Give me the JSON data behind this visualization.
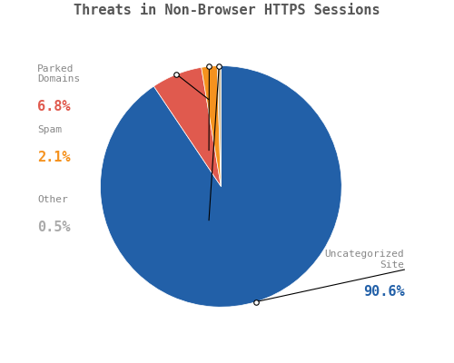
{
  "title": "Threats in Non-Browser HTTPS Sessions",
  "slices": [
    {
      "label": "Uncategorized\nSite",
      "value": 90.6,
      "color": "#2260a8",
      "pct_text": "90.6%",
      "pct_color": "#2260a8"
    },
    {
      "label": "Parked\nDomains",
      "value": 6.8,
      "color": "#e05a4e",
      "pct_text": "6.8%",
      "pct_color": "#e05a4e"
    },
    {
      "label": "Spam",
      "value": 2.1,
      "color": "#f5921e",
      "pct_text": "2.1%",
      "pct_color": "#f5921e"
    },
    {
      "label": "Other",
      "value": 0.5,
      "color": "#c8b89a",
      "pct_text": "0.5%",
      "pct_color": "#aaaaaa"
    }
  ],
  "title_color": "#555555",
  "title_fontsize": 11,
  "background_color": "#ffffff",
  "start_angle": 90,
  "label_fontsize": 8,
  "pct_fontsize": 11
}
